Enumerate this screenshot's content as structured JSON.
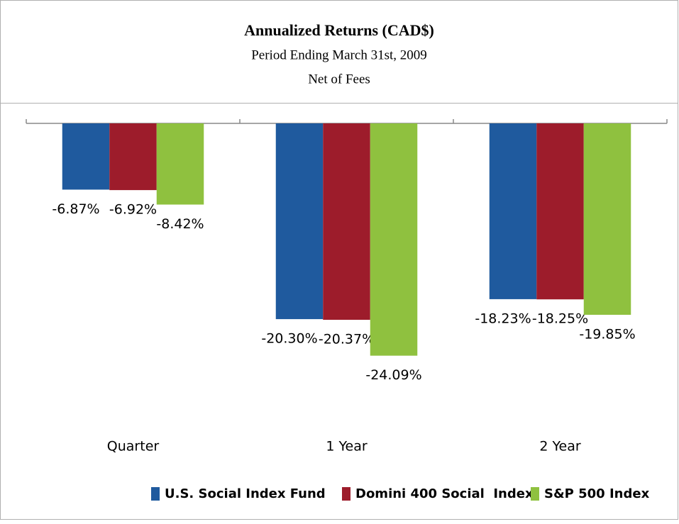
{
  "chart_data": {
    "type": "bar",
    "title": "Annualized Returns (CAD$)",
    "subtitle": [
      "Period Ending March 31st, 2009",
      "Net of Fees"
    ],
    "categories": [
      "Quarter",
      "1 Year",
      "2 Year"
    ],
    "series": [
      {
        "name": "U.S. Social Index Fund",
        "color": "#1f5a9e",
        "values": [
          -6.87,
          -20.3,
          -18.23
        ],
        "value_labels": [
          "-6.87%",
          "-20.30%",
          "-18.23%"
        ]
      },
      {
        "name": "Domini 400 Social  Index",
        "color": "#9d1c2b",
        "values": [
          -6.92,
          -20.37,
          -18.25
        ],
        "value_labels": [
          "-6.92%",
          "-20.37%",
          "-18.25%"
        ]
      },
      {
        "name": "S&P 500 Index",
        "color": "#8fc13f",
        "values": [
          -8.42,
          -24.09,
          -19.85
        ],
        "value_labels": [
          "-8.42%",
          "-24.09%",
          "-19.85%"
        ]
      }
    ],
    "legend": "bottom"
  }
}
